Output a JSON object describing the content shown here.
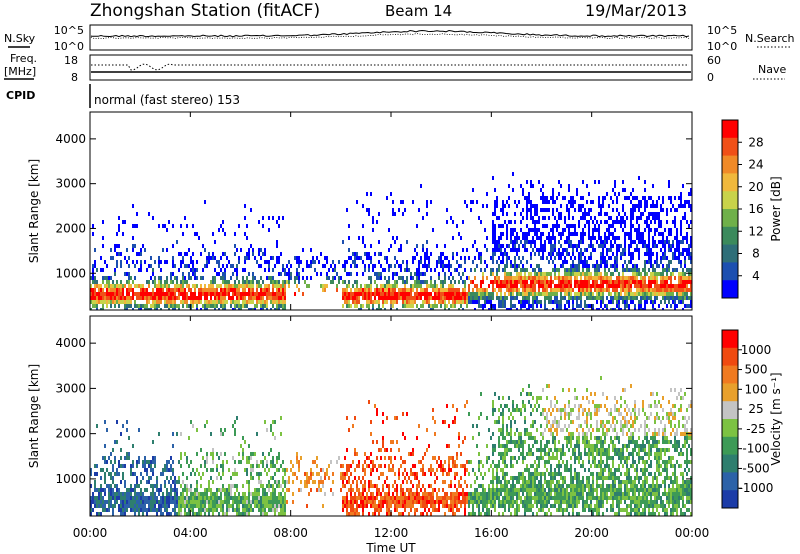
{
  "header": {
    "station": "Zhongshan Station (fitACF)",
    "beam": "Beam 14",
    "date": "19/Mar/2013"
  },
  "strip_labels": {
    "nsky": "N.Sky",
    "nsearch": "N.Search",
    "freq_line1": "Freq.",
    "freq_line2": "[MHz]",
    "nave": "Nave",
    "cpid": "CPID",
    "cpid_value": "normal (fast stereo) 153",
    "nsky_ticks": [
      "10^5",
      "10^0"
    ],
    "nsearch_ticks": [
      "10^5",
      "10^0"
    ],
    "freq_ticks": [
      "18",
      "8"
    ],
    "nave_ticks": [
      "60",
      "0"
    ]
  },
  "chart_data": [
    {
      "type": "heatmap",
      "name_key": "power",
      "ylabel": "Slant Range [km]",
      "xlabel": "Time UT",
      "x_ticks": [
        "00:00",
        "04:00",
        "08:00",
        "12:00",
        "16:00",
        "20:00",
        "00:00"
      ],
      "xlim_hours": [
        0,
        24
      ],
      "ylim_km": [
        180,
        4600
      ],
      "y_ticks": [
        1000,
        2000,
        3000,
        4000
      ],
      "colorbar": {
        "label": "Power [dB]",
        "ticks": [
          "4",
          "8",
          "12",
          "16",
          "20",
          "24",
          "28"
        ],
        "colors": [
          "#0000ff",
          "#1c4fb0",
          "#2e6e78",
          "#3b8a5c",
          "#6fb04a",
          "#c8d34a",
          "#f0b83c",
          "#f08a28",
          "#f05018",
          "#ff0000"
        ]
      }
    },
    {
      "type": "heatmap",
      "name_key": "velocity",
      "ylabel": "Slant Range [km]",
      "xlabel": "Time UT",
      "x_ticks": [
        "00:00",
        "04:00",
        "08:00",
        "12:00",
        "16:00",
        "20:00",
        "00:00"
      ],
      "xlim_hours": [
        0,
        24
      ],
      "ylim_km": [
        180,
        4600
      ],
      "y_ticks": [
        1000,
        2000,
        3000,
        4000
      ],
      "colorbar": {
        "label": "Velocity [m s⁻¹]",
        "ticks": [
          "1000",
          "500",
          "100",
          "25",
          "-25",
          "-100",
          "-500",
          "-1000"
        ],
        "colors": [
          "#1c3ca8",
          "#2c62a8",
          "#2e7e6e",
          "#3d9a56",
          "#7cc242",
          "#c4c4c4",
          "#e8a02c",
          "#f07a20",
          "#f04a10",
          "#ff0000"
        ]
      }
    }
  ]
}
